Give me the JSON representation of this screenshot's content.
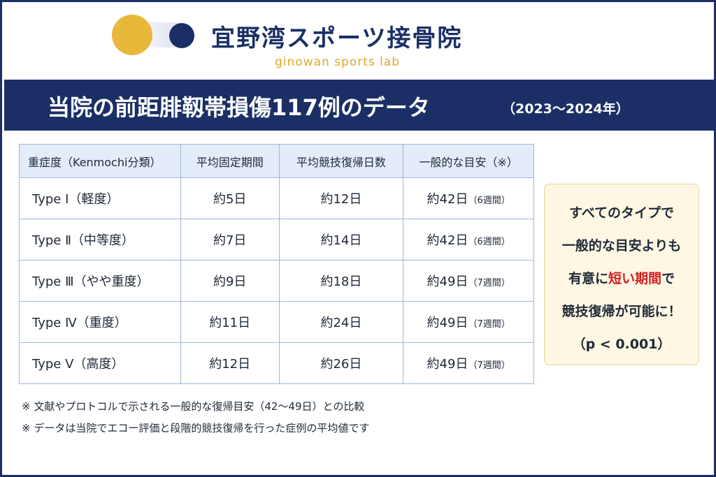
{
  "logo": {
    "name_jp": "宜野湾スポーツ接骨院",
    "name_en": "ginowan sports lab",
    "colors": {
      "gold": "#e7b83a",
      "navy": "#1b2f66"
    }
  },
  "banner": {
    "title": "当院の前距腓靱帯損傷117例のデータ",
    "period": "（2023〜2024年）"
  },
  "table": {
    "headers": [
      "重症度（Kenmochi分類）",
      "平均固定期間",
      "平均競技復帰日数",
      "一般的な目安（※）"
    ],
    "rows": [
      {
        "type": "Type Ⅰ（軽度）",
        "fixation": "約5日",
        "return": "約12日",
        "general": "約42日",
        "weeks": "（6週間）"
      },
      {
        "type": "Type Ⅱ（中等度）",
        "fixation": "約7日",
        "return": "約14日",
        "general": "約42日",
        "weeks": "（6週間）"
      },
      {
        "type": "Type Ⅲ（やや重度）",
        "fixation": "約9日",
        "return": "約18日",
        "general": "約49日",
        "weeks": "（7週間）"
      },
      {
        "type": "Type Ⅳ（重度）",
        "fixation": "約11日",
        "return": "約24日",
        "general": "約49日",
        "weeks": "（7週間）"
      },
      {
        "type": "Type Ⅴ（高度）",
        "fixation": "約12日",
        "return": "約26日",
        "general": "約49日",
        "weeks": "（7週間）"
      }
    ]
  },
  "callout": {
    "line1": "すべてのタイプで",
    "line2": "一般的な目安よりも",
    "line3_before": "有意に",
    "line3_highlight": "短い期間",
    "line3_after": "で",
    "line4": "競技復帰が可能に！",
    "line5": "（p < 0.001）",
    "highlight_color": "#d32020"
  },
  "notes": [
    "※ 文献やプロトコルで示される一般的な復帰目安（42〜49日）との比較",
    "※ データは当院でエコー評価と段階的競技復帰を行った症例の平均値です"
  ]
}
